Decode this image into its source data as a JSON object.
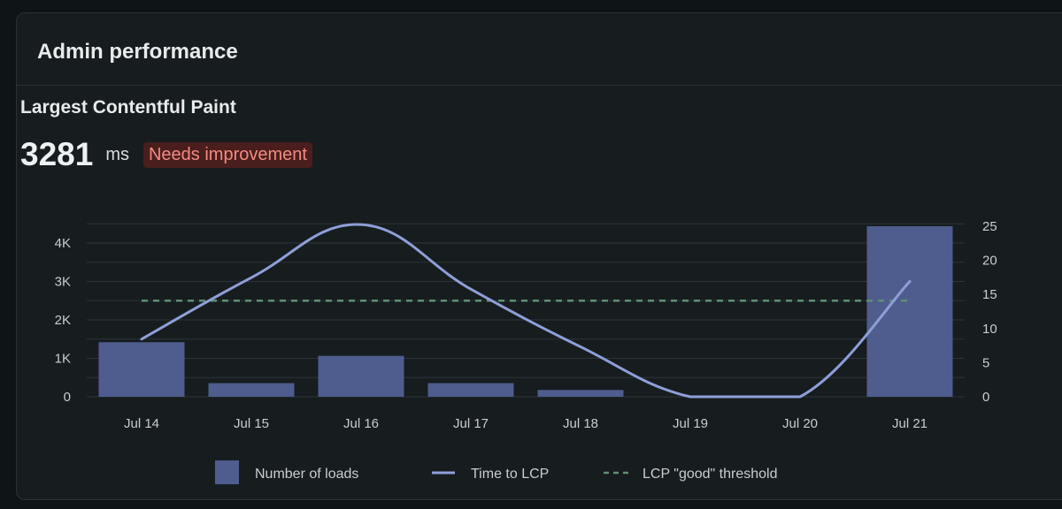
{
  "panel": {
    "title": "Admin performance"
  },
  "metric": {
    "title": "Largest Contentful Paint",
    "value": "3281",
    "unit": "ms",
    "status": "Needs improvement"
  },
  "colors": {
    "bars": "#4e5d8d",
    "line": "#8e9fd8",
    "threshold": "#5e8f73",
    "grid": "#2c3438",
    "badge_bg": "#4a1e1d",
    "badge_text": "#f28b82"
  },
  "chart_data": {
    "type": "bar",
    "categories": [
      "Jul 14",
      "Jul 15",
      "Jul 16",
      "Jul 17",
      "Jul 18",
      "Jul 19",
      "Jul 20",
      "Jul 21"
    ],
    "left_axis": {
      "ticks": [
        "0",
        "1K",
        "2K",
        "3K",
        "4K"
      ],
      "ylim": [
        0,
        4500
      ]
    },
    "right_axis": {
      "ticks": [
        "0",
        "5",
        "10",
        "15",
        "20",
        "25"
      ],
      "ylim": [
        0,
        25.5
      ]
    },
    "series": [
      {
        "name": "Number of loads",
        "type": "bar",
        "axis": "right",
        "values": [
          8,
          2,
          6,
          2,
          1,
          0,
          0,
          25
        ]
      },
      {
        "name": "Time to LCP",
        "type": "line",
        "axis": "left",
        "values": [
          1500,
          3100,
          4480,
          2800,
          1300,
          0,
          0,
          3000
        ]
      },
      {
        "name": "LCP \"good\" threshold",
        "type": "dashed-line",
        "axis": "left",
        "values": [
          2500,
          2500,
          2500,
          2500,
          2500,
          2500,
          2500,
          2500
        ]
      }
    ],
    "grid": true,
    "legend": "bottom"
  }
}
